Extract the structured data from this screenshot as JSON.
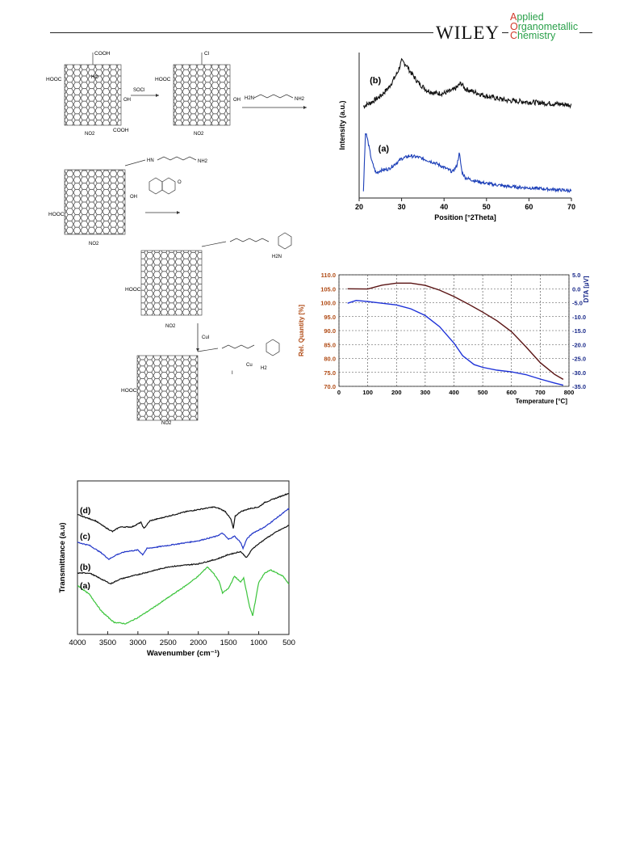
{
  "header": {
    "publisher": "WILEY",
    "journal_lines": [
      "Applied",
      "Organometallic",
      "Chemistry"
    ],
    "journal_initials": [
      "A",
      "O",
      "C"
    ],
    "journal_rests": [
      "pplied",
      "rganometallic",
      "hemistry"
    ]
  },
  "scheme": {
    "reagents": [
      "SOCl",
      "CuI"
    ],
    "labels": {
      "cooh": "COOH",
      "hooc": "HOOC",
      "ho": "HO",
      "oh": "OH",
      "o": "O",
      "no2": "NO2",
      "cocl": "Cl",
      "amide_chain": "HN",
      "nh2": "NH2",
      "cu": "Cu",
      "i": "I",
      "h2": "H2",
      "h2n": "H2N",
      "h": "H",
      "n": "N"
    }
  },
  "charts": [
    {
      "type": "line",
      "id": "xrd",
      "xlabel": "Position [°2Theta]",
      "ylabel": "Intensity (a.u.)",
      "xlim": [
        20,
        70
      ],
      "xticks": [
        20,
        30,
        40,
        50,
        60,
        70
      ],
      "series": [
        {
          "name": "(b)",
          "color": "#111111",
          "x": [
            21,
            23,
            25,
            27,
            29,
            30,
            31,
            32,
            34,
            36,
            38,
            40,
            42,
            43,
            44,
            45,
            46,
            48,
            50,
            55,
            60,
            65,
            70
          ],
          "y": [
            0.63,
            0.66,
            0.7,
            0.76,
            0.86,
            0.94,
            0.92,
            0.87,
            0.79,
            0.74,
            0.72,
            0.72,
            0.74,
            0.76,
            0.79,
            0.75,
            0.74,
            0.72,
            0.7,
            0.67,
            0.66,
            0.65,
            0.64
          ]
        },
        {
          "name": "(a)",
          "color": "#1c3fb8",
          "x": [
            21,
            21.5,
            22,
            23,
            24,
            25,
            27,
            30,
            32,
            34,
            36,
            38,
            40,
            42,
            43,
            43.6,
            44.2,
            45,
            47,
            50,
            55,
            60,
            65,
            70
          ],
          "y": [
            0.05,
            0.46,
            0.4,
            0.25,
            0.17,
            0.19,
            0.2,
            0.27,
            0.29,
            0.28,
            0.26,
            0.24,
            0.21,
            0.18,
            0.22,
            0.31,
            0.18,
            0.14,
            0.12,
            0.1,
            0.08,
            0.07,
            0.06,
            0.05
          ]
        }
      ]
    },
    {
      "type": "line",
      "id": "tga",
      "xlabel": "Temperature [°C]",
      "ylabel_left": "Rel. Quantity [%]",
      "ylabel_right": "DTA [µV]",
      "xlim": [
        0,
        800
      ],
      "ylim_left": [
        70,
        110
      ],
      "ylim_right": [
        -35,
        5
      ],
      "xticks": [
        0,
        100,
        200,
        300,
        400,
        500,
        600,
        700,
        800
      ],
      "yticks_left": [
        "110.0",
        "105.0",
        "100.0",
        "95.0",
        "90.0",
        "85.0",
        "80.0",
        "75.0",
        "70.0"
      ],
      "yticks_right": [
        "5.0",
        "0.0",
        "-5.0",
        "-10.0",
        "-15.0",
        "-20.0",
        "-25.0",
        "-30.0",
        "-35.0"
      ],
      "grid": true,
      "series": [
        {
          "name": "",
          "axis": "left",
          "color": "#5a1414",
          "x": [
            30,
            100,
            150,
            200,
            250,
            300,
            350,
            400,
            450,
            500,
            550,
            600,
            650,
            700,
            750,
            780
          ],
          "y": [
            105.0,
            104.9,
            106.3,
            107.0,
            107.0,
            106.2,
            104.5,
            102.2,
            99.5,
            96.6,
            93.5,
            89.6,
            84.2,
            78.5,
            74.3,
            72.5
          ]
        },
        {
          "name": "",
          "axis": "right",
          "color": "#1e32d8",
          "x": [
            30,
            60,
            100,
            150,
            200,
            250,
            300,
            350,
            400,
            430,
            470,
            500,
            550,
            600,
            650,
            700,
            750,
            780
          ],
          "y": [
            -5.2,
            -4.2,
            -4.6,
            -5.2,
            -5.8,
            -7.2,
            -9.6,
            -13.6,
            -19.5,
            -24.0,
            -27.2,
            -28.2,
            -29.2,
            -29.8,
            -30.8,
            -32.4,
            -33.8,
            -34.6
          ]
        }
      ]
    },
    {
      "type": "line",
      "id": "ftir",
      "xlabel": "Wavenumber (cm⁻¹)",
      "ylabel": "Transmittance (a.u)",
      "xlim": [
        4000,
        500
      ],
      "xticks": [
        4000,
        3500,
        3000,
        2500,
        2000,
        1500,
        1000,
        500
      ],
      "series": [
        {
          "name": "(d)",
          "color": "#111111",
          "x": [
            4000,
            3700,
            3550,
            3420,
            3300,
            3100,
            2950,
            2900,
            2800,
            2500,
            2200,
            1900,
            1750,
            1650,
            1550,
            1460,
            1420,
            1390,
            1300,
            1150,
            1000,
            900,
            700,
            500
          ],
          "y": [
            0.78,
            0.74,
            0.7,
            0.67,
            0.7,
            0.7,
            0.73,
            0.69,
            0.74,
            0.77,
            0.8,
            0.82,
            0.83,
            0.82,
            0.8,
            0.75,
            0.69,
            0.77,
            0.8,
            0.82,
            0.83,
            0.86,
            0.89,
            0.92
          ]
        },
        {
          "name": "(c)",
          "color": "#2236c8",
          "x": [
            4000,
            3800,
            3600,
            3480,
            3350,
            3200,
            3000,
            2920,
            2850,
            2500,
            2000,
            1700,
            1600,
            1500,
            1400,
            1300,
            1260,
            1200,
            1100,
            900,
            700,
            500
          ],
          "y": [
            0.6,
            0.58,
            0.53,
            0.49,
            0.52,
            0.54,
            0.55,
            0.52,
            0.56,
            0.58,
            0.61,
            0.64,
            0.66,
            0.62,
            0.64,
            0.6,
            0.56,
            0.62,
            0.66,
            0.7,
            0.76,
            0.82
          ]
        },
        {
          "name": "(b)",
          "color": "#111111",
          "x": [
            4000,
            3800,
            3600,
            3450,
            3300,
            3100,
            3000,
            2900,
            2500,
            2000,
            1700,
            1500,
            1300,
            1200,
            1100,
            900,
            700,
            500
          ],
          "y": [
            0.4,
            0.4,
            0.36,
            0.33,
            0.36,
            0.38,
            0.39,
            0.4,
            0.44,
            0.46,
            0.49,
            0.52,
            0.54,
            0.5,
            0.56,
            0.62,
            0.67,
            0.71
          ]
        },
        {
          "name": "(a)",
          "color": "#3bc43b",
          "x": [
            4000,
            3800,
            3600,
            3400,
            3200,
            3000,
            2800,
            2500,
            2200,
            2000,
            1850,
            1750,
            1650,
            1600,
            1500,
            1400,
            1300,
            1250,
            1150,
            1100,
            1000,
            900,
            800,
            700,
            600,
            500
          ],
          "y": [
            0.32,
            0.26,
            0.15,
            0.08,
            0.07,
            0.11,
            0.16,
            0.24,
            0.32,
            0.38,
            0.44,
            0.4,
            0.34,
            0.27,
            0.3,
            0.38,
            0.34,
            0.37,
            0.18,
            0.12,
            0.34,
            0.4,
            0.42,
            0.4,
            0.38,
            0.33
          ]
        }
      ]
    }
  ]
}
